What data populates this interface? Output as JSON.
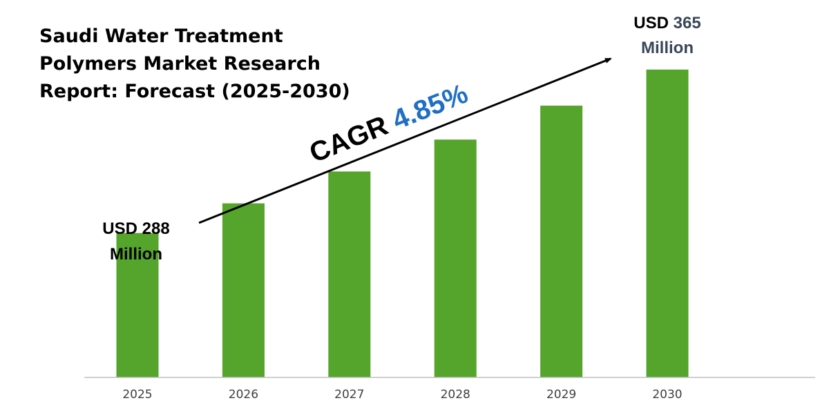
{
  "chart_data": {
    "type": "bar",
    "title_lines": [
      "Saudi Water Treatment",
      "Polymers Market Research",
      "Report: Forecast (2025-2030)"
    ],
    "categories": [
      "2025",
      "2026",
      "2027",
      "2028",
      "2029",
      "2030"
    ],
    "values": [
      288,
      302,
      317,
      332,
      348,
      365
    ],
    "ylim": [
      220,
      375
    ],
    "grid": false,
    "bar_color": "#55a42b",
    "axis_color": "#bfbfbf",
    "annotations": {
      "start": {
        "prefix": "USD",
        "value": "288",
        "unit": "Million"
      },
      "end": {
        "prefix": "USD",
        "value": "365",
        "unit": "Million"
      },
      "cagr": {
        "label": "CAGR",
        "value": "4.85%"
      }
    }
  }
}
